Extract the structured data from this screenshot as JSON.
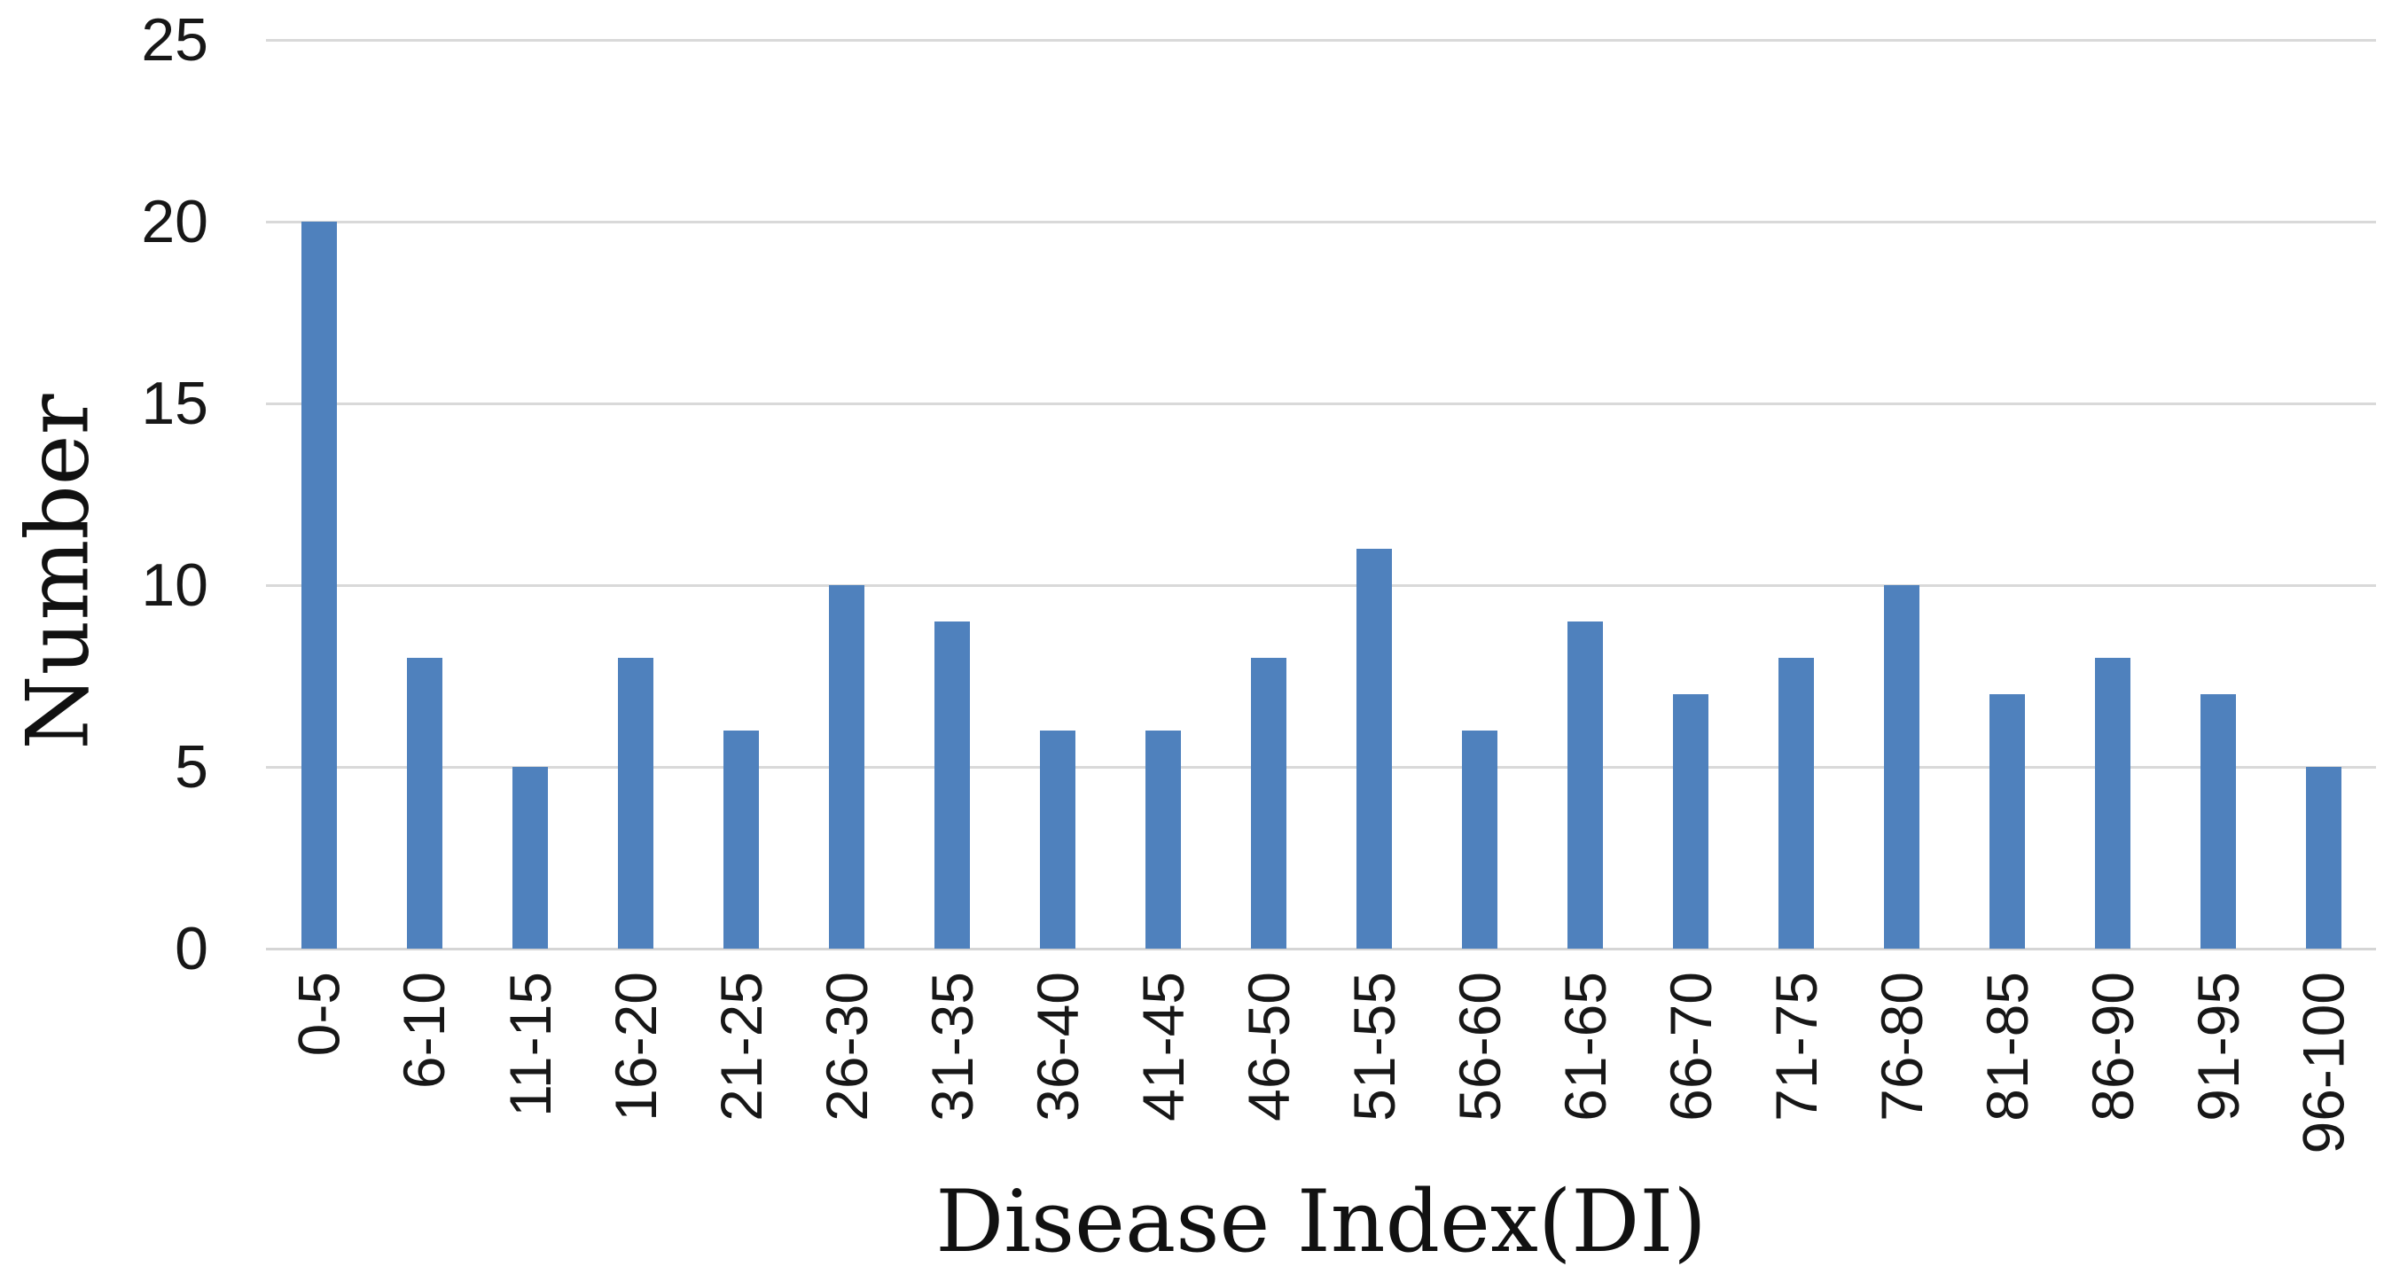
{
  "chart_data": {
    "type": "bar",
    "title": "",
    "categories": [
      "0-5",
      "6-10",
      "11-15",
      "16-20",
      "21-25",
      "26-30",
      "31-35",
      "36-40",
      "41-45",
      "46-50",
      "51-55",
      "56-60",
      "61-65",
      "66-70",
      "71-75",
      "76-80",
      "81-85",
      "86-90",
      "91-95",
      "96-100"
    ],
    "values": [
      20,
      8,
      5,
      8,
      6,
      10,
      9,
      6,
      6,
      8,
      11,
      6,
      9,
      7,
      8,
      10,
      7,
      8,
      7,
      5
    ],
    "xlabel": "Disease Index(DI)",
    "ylabel": "Number",
    "ylim": [
      0,
      25
    ],
    "yticks": [
      0,
      5,
      10,
      15,
      20,
      25
    ],
    "grid": true,
    "legend": false,
    "bar_color": "#4F81BD",
    "gridline_color": "#D9D9D9",
    "axis_line_color": "#D5D5D5",
    "tick_text_color": "#171717",
    "title_text_color": "#111111",
    "background_color": "#FFFFFF"
  }
}
